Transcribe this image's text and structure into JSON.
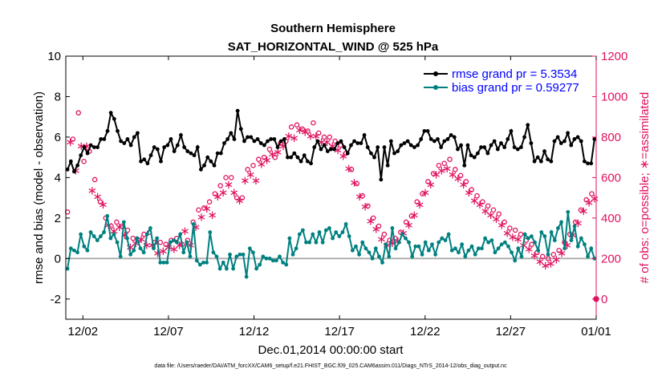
{
  "chart_data": {
    "type": "line",
    "title_line1": "Southern Hemisphere",
    "title_line2": "SAT_HORIZONTAL_WIND @ 525 hPa",
    "xlabel": "Dec.01,2014 00:00:00 start",
    "ylabel_left": "rmse and bias (model - observation)",
    "ylabel_right": "# of obs: o=possible; ∗=assimilated",
    "x_range": [
      0,
      31
    ],
    "y_left_range": [
      -3,
      10
    ],
    "y_right_range": [
      -100,
      1200
    ],
    "x_ticks": [
      {
        "label": "12/02",
        "value": 1
      },
      {
        "label": "12/07",
        "value": 6
      },
      {
        "label": "12/12",
        "value": 11
      },
      {
        "label": "12/17",
        "value": 16
      },
      {
        "label": "12/22",
        "value": 21
      },
      {
        "label": "12/27",
        "value": 26
      },
      {
        "label": "01/01",
        "value": 31
      }
    ],
    "y_left_ticks": [
      "-2",
      "0",
      "2",
      "4",
      "6",
      "8",
      "10"
    ],
    "y_right_ticks": [
      "0",
      "200",
      "400",
      "600",
      "800",
      "1000",
      "1200"
    ],
    "legend": [
      {
        "label": "rmse grand pr = 5.3534",
        "color": "#000000"
      },
      {
        "label": "bias grand pr = 0.59277",
        "color": "#008080"
      }
    ],
    "colors": {
      "rmse": "#000000",
      "bias": "#008080",
      "obs": "#e0115f",
      "zero_line": "#b0b0b0"
    },
    "series": [
      {
        "name": "rmse",
        "axis": "left",
        "values": [
          4.4,
          4.8,
          4.3,
          4.6,
          5.1,
          5.5,
          5.2,
          5.6,
          5.5,
          5.5,
          5.9,
          5.9,
          6.3,
          7.2,
          6.9,
          6.3,
          5.8,
          5.7,
          5.9,
          5.6,
          6.0,
          6.2,
          4.8,
          4.9,
          4.7,
          5.1,
          5.5,
          5.4,
          4.8,
          5.5,
          5.6,
          5.9,
          5.3,
          5.6,
          6.1,
          5.5,
          5.3,
          5.2,
          5.1,
          5.5,
          4.4,
          4.6,
          5.0,
          4.8,
          4.6,
          5.2,
          5.2,
          5.7,
          5.9,
          6.2,
          5.9,
          7.3,
          6.4,
          5.8,
          6.0,
          6.0,
          5.8,
          5.9,
          5.7,
          5.6,
          5.8,
          5.9,
          5.9,
          5.5,
          5.8,
          5.9,
          5.0,
          5.0,
          5.2,
          5.0,
          4.8,
          5.1,
          4.8,
          4.7,
          5.5,
          5.8,
          5.4,
          5.6,
          5.3,
          5.4,
          5.4,
          5.7,
          5.8,
          5.5,
          5.2,
          5.6,
          5.8,
          5.7,
          5.7,
          6.1,
          5.5,
          5.2,
          5.0,
          5.5,
          3.9,
          5.5,
          4.6,
          5.8,
          5.2,
          5.3,
          5.6,
          5.7,
          5.8,
          5.6,
          5.5,
          5.6,
          5.9,
          6.3,
          6.3,
          5.9,
          5.8,
          5.9,
          5.5,
          5.8,
          5.9,
          6.1,
          6.0,
          5.4,
          5.6,
          4.6,
          5.6,
          5.1,
          5.0,
          5.2,
          5.5,
          5.5,
          5.2,
          5.6,
          5.8,
          5.4,
          5.7,
          5.5,
          5.9,
          6.3,
          5.5,
          5.4,
          5.5,
          6.0,
          6.6,
          5.7,
          4.8,
          5.0,
          4.8,
          5.3,
          4.9,
          4.8,
          5.8,
          6.0,
          5.7,
          5.8,
          6.2,
          5.6,
          5.9,
          6.0,
          5.8,
          4.8,
          4.7,
          4.7,
          5.9
        ]
      },
      {
        "name": "bias",
        "axis": "left",
        "values": [
          -0.5,
          0.5,
          0.4,
          0.3,
          1.2,
          0.6,
          0.4,
          1.3,
          1.1,
          0.9,
          1.1,
          1.3,
          2.1,
          1.0,
          1.2,
          0.8,
          0.1,
          1.8,
          1.0,
          0.2,
          0.4,
          1.0,
          0.5,
          0.3,
          1.2,
          1.5,
          0.5,
          1.0,
          -0.2,
          -0.2,
          -0.2,
          0.8,
          0.9,
          0.8,
          1.2,
          0.3,
          0.8,
          0.1,
          1.7,
          -0.1,
          -0.3,
          -0.2,
          -0.2,
          1.3,
          0.3,
          0.1,
          -0.5,
          -0.2,
          -0.5,
          0.2,
          -0.5,
          0.1,
          0.2,
          0.2,
          -0.9,
          0.5,
          0.3,
          -0.5,
          -0.3,
          0.1,
          0.0,
          0.0,
          -0.1,
          -0.1,
          0.1,
          -0.2,
          -0.3,
          1.0,
          0.2,
          0.5,
          1.2,
          1.4,
          0.8,
          0.8,
          1.2,
          0.8,
          1.3,
          0.8,
          1.4,
          1.5,
          1.0,
          1.3,
          1.1,
          1.3,
          1.7,
          1.1,
          0.4,
          0.6,
          0.2,
          0.8,
          0.5,
          0.3,
          0.0,
          0.5,
          0.1,
          -0.2,
          0.7,
          0.1,
          1.5,
          0.5,
          0.8,
          1.2,
          1.0,
          0.8,
          0.1,
          0.6,
          0.6,
          0.2,
          0.8,
          0.4,
          0.7,
          0.2,
          0.8,
          1.0,
          0.9,
          1.2,
          0.4,
          0.5,
          0.3,
          0.7,
          0.1,
          0.4,
          0.6,
          0.2,
          0.5,
          0.5,
          1.0,
          0.8,
          0.9,
          0.3,
          0.5,
          0.7,
          0.8,
          0.6,
          0.3,
          -0.1,
          0.5,
          0.1,
          1.2,
          1.0,
          1.1,
          0.8,
          0.4,
          1.3,
          1.1,
          0.2,
          1.3,
          0.9,
          1.5,
          1.8,
          0.5,
          2.3,
          0.9,
          1.6,
          0.6,
          1.0,
          0.7,
          0.1,
          0.5,
          0.0
        ]
      },
      {
        "name": "obs_possible",
        "axis": "right",
        "values": [
          430,
          840,
          790,
          690,
          920,
          840,
          680,
          820,
          730,
          580,
          590,
          550,
          480,
          510,
          400,
          400,
          360,
          370,
          380,
          390,
          360,
          350,
          340,
          290,
          300,
          310,
          290,
          330,
          320,
          300,
          330,
          300,
          280,
          260,
          280,
          270,
          270,
          290,
          290,
          280,
          300,
          300,
          270,
          370,
          290,
          300,
          380,
          390,
          440,
          440,
          450,
          480,
          480,
          450,
          520,
          540,
          560,
          560,
          600,
          600,
          600,
          560,
          500,
          520,
          500,
          620,
          640,
          650,
          660,
          620,
          690,
          700,
          700,
          720,
          740,
          750,
          700,
          760,
          770,
          790,
          780,
          840,
          850,
          830,
          860,
          870,
          840,
          860,
          830,
          840,
          870,
          840,
          820,
          810,
          800,
          810,
          800,
          790,
          780,
          770,
          760,
          740,
          720,
          680,
          640,
          610,
          570,
          540,
          510,
          490,
          460,
          420,
          400,
          380,
          360,
          330,
          320,
          300,
          290,
          310,
          300,
          320,
          330,
          360,
          380,
          400,
          410,
          450,
          480,
          500,
          520,
          560,
          580,
          600,
          620,
          650,
          660,
          670,
          670,
          680,
          690,
          650,
          640,
          630,
          610,
          600,
          580,
          560,
          540,
          520,
          510,
          500,
          480,
          470,
          460,
          450,
          440,
          430,
          420,
          400,
          380,
          360,
          350,
          340,
          340,
          330,
          320,
          300,
          290,
          280,
          270,
          250,
          230,
          220,
          210,
          200,
          200,
          210,
          220,
          230,
          240,
          260,
          280,
          300,
          320,
          350,
          380,
          410,
          440,
          470,
          490,
          510,
          520,
          530
        ]
      },
      {
        "name": "obs_assimilated",
        "axis": "right",
        "values": [
          430,
          780,
          750,
          640,
          850,
          760,
          620,
          760,
          690,
          540,
          550,
          510,
          440,
          470,
          370,
          370,
          330,
          340,
          350,
          360,
          330,
          320,
          310,
          260,
          270,
          280,
          260,
          300,
          290,
          270,
          300,
          270,
          250,
          230,
          250,
          240,
          240,
          260,
          260,
          250,
          270,
          270,
          240,
          340,
          260,
          270,
          350,
          360,
          410,
          410,
          420,
          450,
          450,
          420,
          490,
          510,
          530,
          530,
          570,
          570,
          570,
          530,
          470,
          490,
          470,
          590,
          610,
          620,
          630,
          590,
          660,
          670,
          670,
          690,
          710,
          720,
          670,
          730,
          740,
          760,
          750,
          810,
          820,
          800,
          830,
          840,
          810,
          830,
          800,
          810,
          840,
          810,
          790,
          780,
          770,
          780,
          770,
          760,
          750,
          740,
          730,
          710,
          690,
          650,
          610,
          580,
          540,
          510,
          480,
          460,
          430,
          390,
          370,
          350,
          330,
          300,
          290,
          270,
          260,
          280,
          270,
          290,
          300,
          330,
          350,
          370,
          380,
          420,
          450,
          470,
          490,
          530,
          550,
          570,
          590,
          620,
          630,
          640,
          640,
          650,
          660,
          620,
          610,
          600,
          580,
          570,
          550,
          530,
          510,
          490,
          480,
          470,
          450,
          440,
          430,
          420,
          410,
          400,
          390,
          370,
          350,
          330,
          320,
          310,
          310,
          300,
          290,
          270,
          260,
          250,
          240,
          220,
          200,
          190,
          180,
          170,
          170,
          180,
          190,
          200,
          210,
          230,
          250,
          270,
          290,
          320,
          350,
          380,
          410,
          440,
          460,
          480,
          490,
          500
        ]
      }
    ]
  },
  "footer": "data file: /Users/raeder/DAI/ATM_forcXX/CAM6_setup/f.e21.FHIST_BGC.f09_025.CAM6assim.011/Diags_NTrS_2014-12/obs_diag_output.nc"
}
